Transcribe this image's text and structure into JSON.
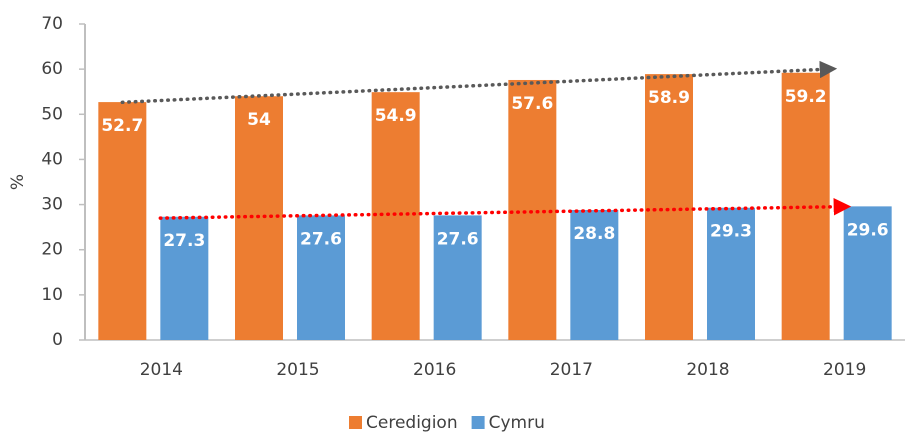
{
  "chart_data": {
    "type": "bar",
    "categories": [
      "2014",
      "2015",
      "2016",
      "2017",
      "2018",
      "2019"
    ],
    "series": [
      {
        "name": "Ceredigion",
        "color": "#ed7d31",
        "trendline": "#595959",
        "values": [
          52.7,
          54,
          54.9,
          57.6,
          58.9,
          59.2
        ]
      },
      {
        "name": "Cymru",
        "color": "#5b9bd5",
        "trendline": "#ff0000",
        "values": [
          27.3,
          27.6,
          27.6,
          28.8,
          29.3,
          29.6
        ]
      }
    ],
    "ylabel": "%",
    "ylim": [
      0,
      70
    ],
    "yticks": [
      0,
      10,
      20,
      30,
      40,
      50,
      60,
      70
    ],
    "grid": false,
    "legend": "bottom"
  }
}
